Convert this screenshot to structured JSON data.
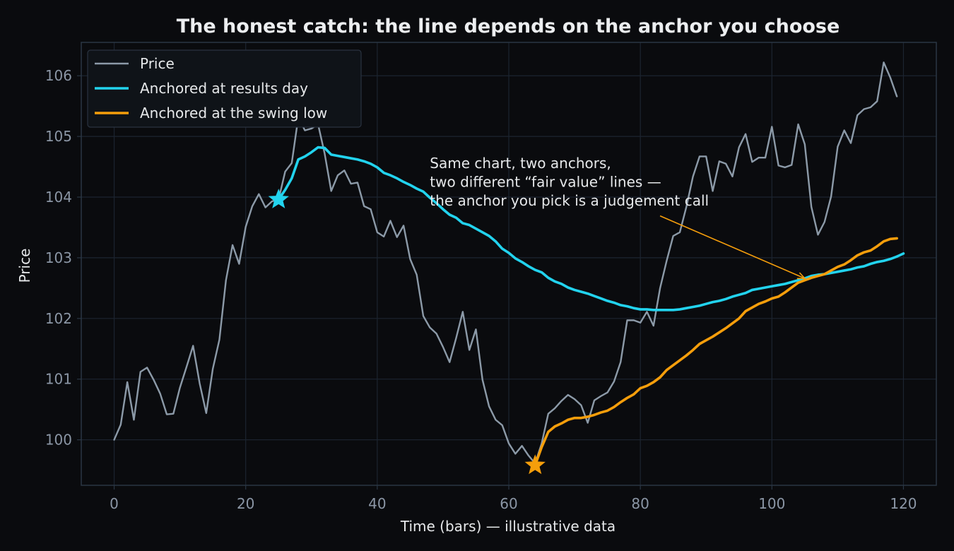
{
  "colors": {
    "background": "#0a0b0e",
    "grid": "#1c2430",
    "spine": "#2a3644",
    "price": "#8c9aa8",
    "results_anchor": "#22d3ee",
    "swing_anchor": "#f59e0b"
  },
  "chart_data": {
    "type": "line",
    "title": "The honest catch: the line depends on the anchor you choose",
    "xlabel": "Time (bars) — illustrative data",
    "ylabel": "Price",
    "xlim": [
      -5,
      125
    ],
    "ylim": [
      99.25,
      106.55
    ],
    "xticks": [
      "0",
      "20",
      "40",
      "60",
      "80",
      "100",
      "120"
    ],
    "yticks": [
      "100",
      "101",
      "102",
      "103",
      "104",
      "105",
      "106"
    ],
    "grid": true,
    "legend_position": "upper-left",
    "series": [
      {
        "name": "Price",
        "x_start": 0,
        "values": [
          100.0,
          100.25,
          100.95,
          100.33,
          101.12,
          101.19,
          100.99,
          100.76,
          100.42,
          100.43,
          100.86,
          101.2,
          101.55,
          100.93,
          100.44,
          101.17,
          101.65,
          102.63,
          103.21,
          102.9,
          103.51,
          103.85,
          104.05,
          103.83,
          103.93,
          103.96,
          104.42,
          104.56,
          105.32,
          105.1,
          105.13,
          105.2,
          104.72,
          104.1,
          104.36,
          104.44,
          104.22,
          104.24,
          103.85,
          103.8,
          103.42,
          103.35,
          103.61,
          103.34,
          103.53,
          102.98,
          102.72,
          102.04,
          101.85,
          101.75,
          101.53,
          101.28,
          101.68,
          102.11,
          101.48,
          101.82,
          100.99,
          100.55,
          100.33,
          100.24,
          99.94,
          99.77,
          99.9,
          99.74,
          99.61,
          99.94,
          100.43,
          100.52,
          100.64,
          100.74,
          100.67,
          100.57,
          100.28,
          100.65,
          100.72,
          100.78,
          100.96,
          101.28,
          101.97,
          101.97,
          101.93,
          102.11,
          101.88,
          102.5,
          102.95,
          103.36,
          103.42,
          103.84,
          104.34,
          104.67,
          104.67,
          104.1,
          104.59,
          104.55,
          104.34,
          104.82,
          105.04,
          104.58,
          104.65,
          104.65,
          105.16,
          104.52,
          104.49,
          104.53,
          105.2,
          104.87,
          103.84,
          103.38,
          103.59,
          104.01,
          104.83,
          105.1,
          104.89,
          105.35,
          105.45,
          105.48,
          105.58,
          106.22,
          105.97,
          105.66
        ]
      },
      {
        "name": "Anchored at results day",
        "x_start": 25,
        "values": [
          103.96,
          104.12,
          104.31,
          104.62,
          104.67,
          104.74,
          104.82,
          104.81,
          104.7,
          104.68,
          104.66,
          104.64,
          104.62,
          104.59,
          104.55,
          104.49,
          104.4,
          104.36,
          104.31,
          104.25,
          104.2,
          104.14,
          104.09,
          103.99,
          103.9,
          103.8,
          103.71,
          103.66,
          103.57,
          103.54,
          103.48,
          103.42,
          103.36,
          103.27,
          103.15,
          103.08,
          102.99,
          102.93,
          102.86,
          102.8,
          102.76,
          102.67,
          102.61,
          102.57,
          102.51,
          102.47,
          102.44,
          102.41,
          102.37,
          102.33,
          102.29,
          102.26,
          102.22,
          102.2,
          102.17,
          102.15,
          102.15,
          102.14,
          102.14,
          102.14,
          102.14,
          102.15,
          102.17,
          102.19,
          102.21,
          102.24,
          102.27,
          102.29,
          102.32,
          102.36,
          102.39,
          102.42,
          102.47,
          102.49,
          102.51,
          102.53,
          102.55,
          102.57,
          102.6,
          102.63,
          102.66,
          102.7,
          102.72,
          102.73,
          102.75,
          102.77,
          102.79,
          102.81,
          102.84,
          102.86,
          102.9,
          102.93,
          102.95,
          102.98,
          103.02,
          103.07
        ]
      },
      {
        "name": "Anchored at the swing low",
        "x_start": 64,
        "values": [
          99.58,
          99.88,
          100.13,
          100.22,
          100.27,
          100.33,
          100.36,
          100.36,
          100.38,
          100.41,
          100.45,
          100.48,
          100.54,
          100.62,
          100.69,
          100.75,
          100.85,
          100.89,
          100.95,
          101.03,
          101.15,
          101.23,
          101.31,
          101.39,
          101.48,
          101.58,
          101.64,
          101.7,
          101.77,
          101.84,
          101.92,
          102.0,
          102.12,
          102.18,
          102.24,
          102.28,
          102.33,
          102.36,
          102.43,
          102.51,
          102.59,
          102.63,
          102.67,
          102.7,
          102.73,
          102.79,
          102.85,
          102.89,
          102.96,
          103.04,
          103.09,
          103.12,
          103.19,
          103.27,
          103.31,
          103.32
        ]
      }
    ],
    "markers": [
      {
        "series": "Anchored at results day",
        "x": 25,
        "y": 103.96,
        "symbol": "star"
      },
      {
        "series": "Anchored at the swing low",
        "x": 64,
        "y": 99.58,
        "symbol": "star"
      }
    ],
    "annotation": {
      "lines": [
        "Same chart, two anchors,",
        "two different “fair value” lines —",
        "the anchor you pick is a judgement call"
      ],
      "text_x": 48,
      "text_y": 104.48,
      "arrow_from": [
        83,
        103.69
      ],
      "arrow_to": [
        105,
        102.66
      ]
    }
  }
}
